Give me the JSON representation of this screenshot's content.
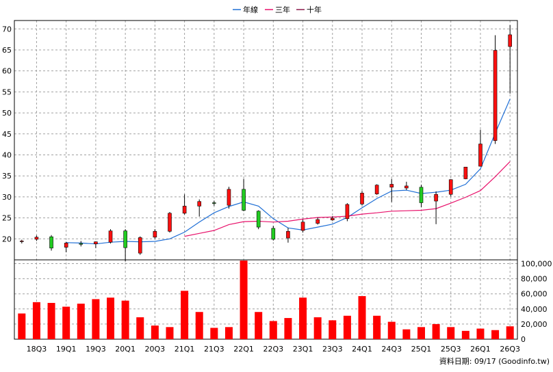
{
  "legend": {
    "items": [
      {
        "label": "年線",
        "color": "#1f6fd6"
      },
      {
        "label": "三年",
        "color": "#e8106a"
      },
      {
        "label": "十年",
        "color": "#8a1a4a"
      }
    ]
  },
  "source_note": "資料日期: 09/17  (Goodinfo.tw)",
  "colors": {
    "up": "#ff1111",
    "down": "#22cc22",
    "volume": "#ff0000",
    "grid": "#a0a0a0"
  },
  "chart_data": {
    "type": "candlestick",
    "quarters": [
      "18Q2",
      "18Q3",
      "18Q4",
      "19Q1",
      "19Q2",
      "19Q3",
      "19Q4",
      "20Q1",
      "20Q2",
      "20Q3",
      "20Q4",
      "21Q1",
      "21Q2",
      "21Q3",
      "21Q4",
      "22Q1",
      "22Q2",
      "22Q3",
      "22Q4",
      "23Q1",
      "23Q2",
      "23Q3",
      "23Q4",
      "24Q1",
      "24Q2",
      "24Q3",
      "24Q4",
      "25Q1",
      "25Q2",
      "25Q3",
      "25Q4",
      "26Q1",
      "26Q2",
      "26Q3"
    ],
    "x_tick_labels": [
      "18Q3",
      "19Q1",
      "19Q3",
      "20Q1",
      "20Q3",
      "21Q1",
      "21Q3",
      "22Q1",
      "22Q3",
      "23Q1",
      "23Q3",
      "24Q1",
      "24Q3",
      "25Q1",
      "25Q3",
      "26Q1",
      "26Q3"
    ],
    "price": {
      "ylim": [
        15,
        72
      ],
      "ticks": [
        20,
        25,
        30,
        35,
        40,
        45,
        50,
        55,
        60,
        65,
        70
      ],
      "tick_labels": [
        "20",
        "25",
        "30",
        "35",
        "40",
        "45",
        "50",
        "55",
        "60",
        "65",
        "70"
      ],
      "ohlc": [
        [
          19.4,
          19.8,
          18.9,
          19.5
        ],
        [
          19.9,
          20.8,
          19.5,
          20.4
        ],
        [
          20.5,
          20.9,
          17.2,
          17.8
        ],
        [
          18.0,
          19.3,
          16.8,
          19.0
        ],
        [
          18.9,
          19.5,
          18.2,
          18.7
        ],
        [
          18.8,
          19.4,
          17.8,
          19.3
        ],
        [
          19.2,
          22.3,
          18.9,
          21.9
        ],
        [
          21.9,
          22.3,
          14.6,
          17.9
        ],
        [
          16.6,
          20.6,
          16.2,
          20.3
        ],
        [
          20.4,
          22.3,
          20.1,
          21.8
        ],
        [
          21.8,
          26.4,
          21.5,
          26.1
        ],
        [
          26.1,
          30.6,
          25.8,
          27.8
        ],
        [
          27.8,
          29.4,
          25.3,
          28.9
        ],
        [
          28.6,
          29.1,
          27.9,
          28.5
        ],
        [
          28.0,
          32.4,
          27.2,
          31.8
        ],
        [
          31.8,
          34.3,
          26.6,
          26.8
        ],
        [
          26.6,
          26.8,
          22.3,
          22.8
        ],
        [
          22.5,
          23.1,
          19.6,
          19.9
        ],
        [
          20.2,
          22.6,
          19.1,
          21.8
        ],
        [
          22.0,
          24.6,
          21.5,
          24.0
        ],
        [
          23.7,
          25.1,
          23.4,
          24.6
        ],
        [
          24.5,
          25.4,
          24.3,
          24.9
        ],
        [
          24.8,
          28.5,
          24.2,
          28.2
        ],
        [
          28.3,
          31.4,
          28.0,
          30.9
        ],
        [
          30.7,
          33.0,
          30.5,
          32.8
        ],
        [
          32.3,
          34.3,
          28.8,
          33.0
        ],
        [
          32.1,
          33.6,
          31.6,
          32.6
        ],
        [
          32.3,
          32.9,
          27.5,
          28.6
        ],
        [
          29.0,
          31.3,
          23.5,
          30.6
        ],
        [
          30.6,
          34.2,
          30.1,
          34.1
        ],
        [
          34.3,
          37.1,
          34.2,
          37.1
        ],
        [
          37.3,
          46.0,
          37.2,
          42.6
        ],
        [
          43.4,
          68.5,
          42.6,
          64.9
        ],
        [
          65.8,
          70.9,
          54.6,
          68.6
        ]
      ]
    },
    "series": [
      {
        "name": "年線",
        "color": "#1f6fd6",
        "values": [
          null,
          null,
          null,
          19.1,
          19.0,
          18.8,
          19.2,
          19.4,
          19.3,
          19.4,
          20.0,
          21.6,
          24.0,
          26.2,
          27.7,
          28.8,
          27.8,
          24.8,
          22.6,
          22.1,
          22.8,
          23.5,
          25.1,
          27.4,
          29.6,
          31.4,
          31.6,
          30.8,
          31.1,
          31.6,
          33.0,
          36.7,
          45.2,
          53.3
        ]
      },
      {
        "name": "三年",
        "color": "#e8106a",
        "values": [
          null,
          null,
          null,
          null,
          null,
          null,
          null,
          null,
          null,
          null,
          null,
          20.6,
          21.3,
          22.0,
          23.4,
          24.1,
          24.2,
          24.0,
          24.2,
          24.7,
          25.1,
          25.2,
          25.4,
          25.9,
          26.2,
          26.6,
          26.7,
          26.8,
          27.2,
          28.5,
          29.9,
          31.5,
          34.8,
          38.4
        ]
      }
    ],
    "volume": {
      "ylim": [
        0,
        105000
      ],
      "ticks": [
        0,
        20000,
        40000,
        60000,
        80000,
        100000
      ],
      "tick_labels": [
        "0",
        "20,000",
        "40,000",
        "60,000",
        "80,000",
        "100,000"
      ],
      "values": [
        34000,
        49000,
        48000,
        43000,
        47000,
        53000,
        55000,
        51000,
        29000,
        18000,
        16000,
        64000,
        36000,
        15000,
        16000,
        104000,
        36000,
        24000,
        28000,
        55000,
        29000,
        25000,
        31000,
        57000,
        31000,
        23000,
        13000,
        16000,
        20000,
        16000,
        11000,
        14000,
        12000,
        17000
      ]
    },
    "grid": true,
    "legend_position": "top-center"
  }
}
